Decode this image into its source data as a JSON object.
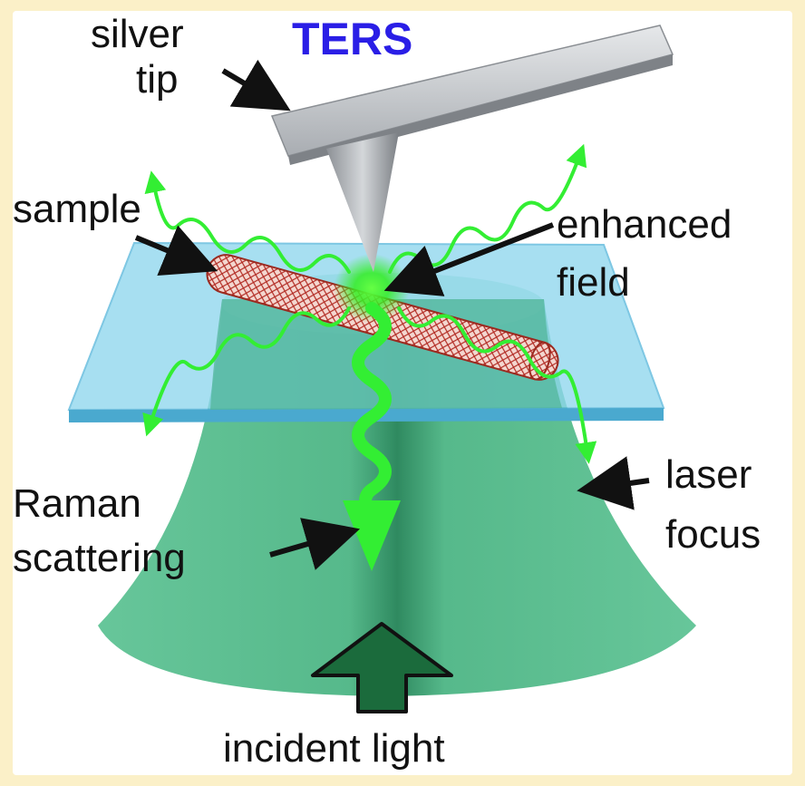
{
  "title": "TERS",
  "labels": {
    "tip_line1": "silver",
    "tip_line2": "tip",
    "sample": "sample",
    "field_line1": "enhanced",
    "field_line2": "field",
    "laser_line1": "laser",
    "laser_line2": "focus",
    "raman_line1": "Raman",
    "raman_line2": "scattering",
    "incident": "incident light"
  },
  "colors": {
    "border": "#fbf0c8",
    "title": "#2a1ee6",
    "laser_cone": "#5cc192",
    "laser_center": "#3e9a72",
    "glass": "#8fd7ee",
    "glass_edge": "#4aa9cf",
    "tip": "#9a9ea3",
    "nanotube": "#c0392b",
    "raman_wave": "#33ee33",
    "incident_arrow": "#1b6b3c"
  }
}
